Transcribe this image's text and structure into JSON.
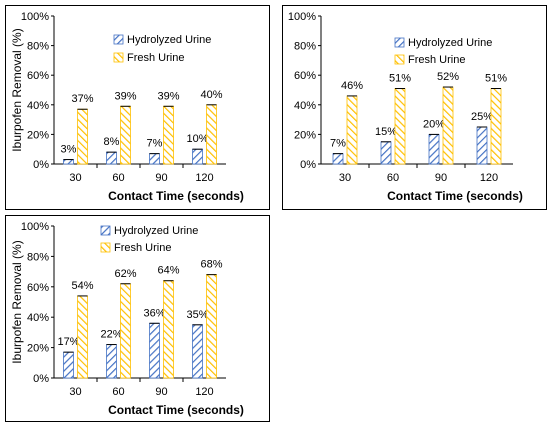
{
  "chart_data": [
    {
      "type": "bar",
      "categories": [
        "30",
        "60",
        "90",
        "120"
      ],
      "xlabel": "Contact Time (seconds)",
      "ylabel": "Iburpofen Removal (%)",
      "ylim": [
        0,
        100
      ],
      "yticks": [
        "0%",
        "20%",
        "40%",
        "60%",
        "80%",
        "100%"
      ],
      "legend_position": "top-center",
      "series": [
        {
          "name": "Hydrolyzed Urine",
          "values": [
            3,
            8,
            7,
            10
          ],
          "labels": [
            "3%",
            "8%",
            "7%",
            "10%"
          ]
        },
        {
          "name": "Fresh Urine",
          "values": [
            37,
            39,
            39,
            40
          ],
          "labels": [
            "37%",
            "39%",
            "39%",
            "40%"
          ]
        }
      ]
    },
    {
      "type": "bar",
      "categories": [
        "30",
        "60",
        "90",
        "120"
      ],
      "xlabel": "Contact Time (seconds)",
      "ylabel": "",
      "ylim": [
        0,
        100
      ],
      "yticks": [
        "0%",
        "20%",
        "40%",
        "60%",
        "80%",
        "100%"
      ],
      "legend_position": "top-center",
      "series": [
        {
          "name": "Hydrolyzed Urine",
          "values": [
            7,
            15,
            20,
            25
          ],
          "labels": [
            "7%",
            "15%",
            "20%",
            "25%"
          ]
        },
        {
          "name": "Fresh Urine",
          "values": [
            46,
            51,
            52,
            51
          ],
          "labels": [
            "46%",
            "51%",
            "52%",
            "51%"
          ]
        }
      ]
    },
    {
      "type": "bar",
      "categories": [
        "30",
        "60",
        "90",
        "120"
      ],
      "xlabel": "Contact Time (seconds)",
      "ylabel": "Iburpofen Removal (%)",
      "ylim": [
        0,
        100
      ],
      "yticks": [
        "0%",
        "20%",
        "40%",
        "60%",
        "80%",
        "100%"
      ],
      "legend_position": "top-center",
      "series": [
        {
          "name": "Hydrolyzed Urine",
          "values": [
            17,
            22,
            36,
            35
          ],
          "labels": [
            "17%",
            "22%",
            "36%",
            "35%"
          ]
        },
        {
          "name": "Fresh Urine",
          "values": [
            54,
            62,
            64,
            68
          ],
          "labels": [
            "54%",
            "62%",
            "64%",
            "68%"
          ]
        }
      ]
    }
  ],
  "colors": {
    "hydrolyzed_stroke": "#4472C4",
    "fresh_stroke": "#FFC000",
    "axis": "#000000"
  }
}
